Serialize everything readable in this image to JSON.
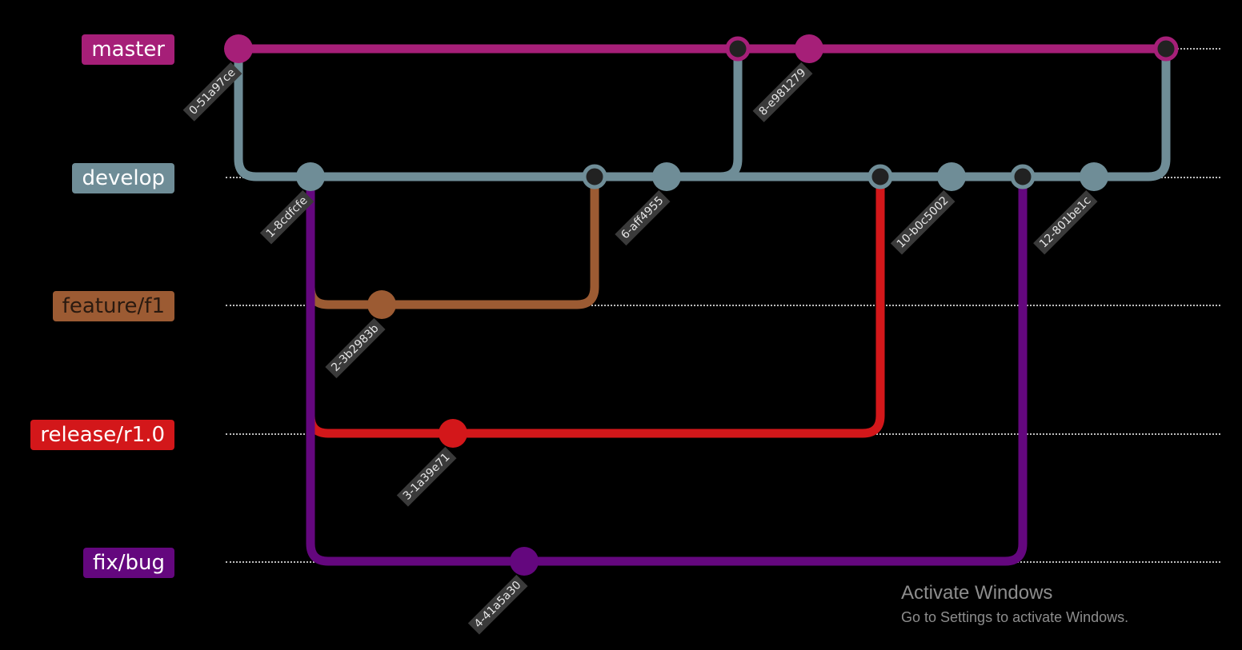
{
  "branches": {
    "master": {
      "label": "master",
      "color": "#a61f78"
    },
    "develop": {
      "label": "develop",
      "color": "#6f8d97"
    },
    "feature": {
      "label": "feature/f1",
      "color": "#9c5b33"
    },
    "release": {
      "label": "release/r1.0",
      "color": "#d3171a"
    },
    "fix": {
      "label": "fix/bug",
      "color": "#64077e"
    }
  },
  "commits": [
    {
      "id": "0-51a97ce",
      "branch": "master",
      "type": "commit"
    },
    {
      "id": "1-8cdfcfe",
      "branch": "develop",
      "type": "commit"
    },
    {
      "id": "2-3b2983b",
      "branch": "feature",
      "type": "commit"
    },
    {
      "id": "3-1a39e71",
      "branch": "release",
      "type": "commit"
    },
    {
      "id": "4-41a5a30",
      "branch": "fix",
      "type": "commit"
    },
    {
      "id": "",
      "branch": "develop",
      "type": "merge",
      "from": "feature"
    },
    {
      "id": "6-aff4955",
      "branch": "develop",
      "type": "commit"
    },
    {
      "id": "",
      "branch": "master",
      "type": "merge",
      "from": "develop"
    },
    {
      "id": "8-e981279",
      "branch": "master",
      "type": "commit"
    },
    {
      "id": "",
      "branch": "develop",
      "type": "merge",
      "from": "release"
    },
    {
      "id": "10-b0c5002",
      "branch": "develop",
      "type": "commit"
    },
    {
      "id": "",
      "branch": "develop",
      "type": "merge",
      "from": "fix"
    },
    {
      "id": "12-801be1c",
      "branch": "develop",
      "type": "commit"
    },
    {
      "id": "",
      "branch": "master",
      "type": "merge",
      "from": "develop"
    }
  ],
  "merge_node_fill": "#222222",
  "watermark": {
    "title": "Activate Windows",
    "subtitle": "Go to Settings to activate Windows."
  }
}
